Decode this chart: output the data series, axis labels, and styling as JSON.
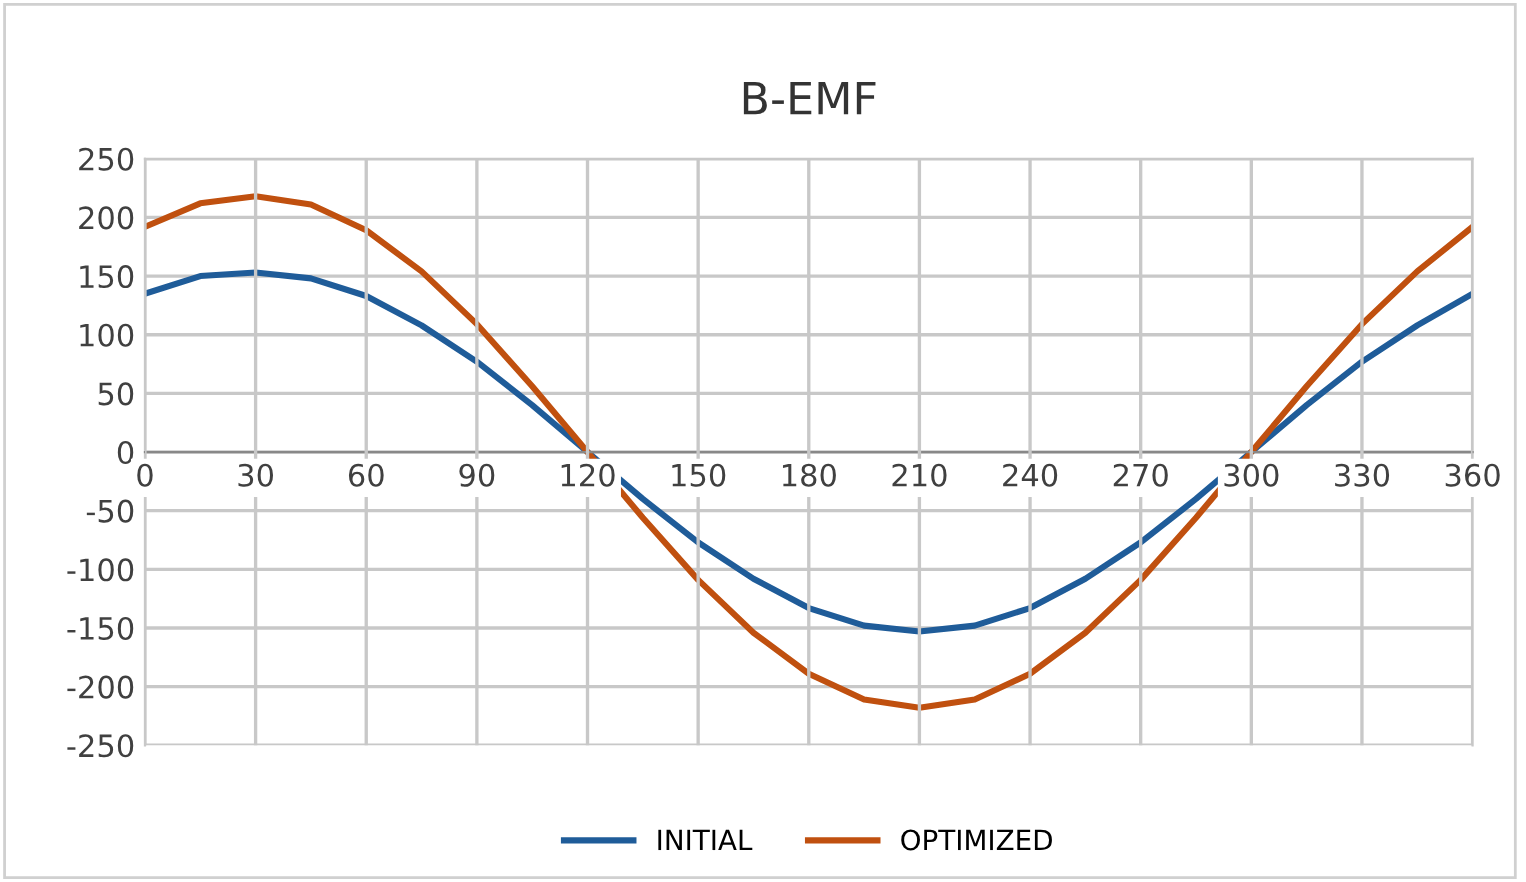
{
  "chart_data": {
    "type": "line",
    "title": "B-EMF",
    "x": [
      0,
      15,
      30,
      45,
      60,
      75,
      90,
      105,
      120,
      135,
      150,
      165,
      180,
      195,
      210,
      225,
      240,
      255,
      270,
      285,
      300,
      315,
      330,
      345,
      360
    ],
    "series": [
      {
        "name": "INITIAL",
        "color": "#1f5c99",
        "values": [
          135,
          150,
          153,
          148,
          133,
          108,
          77,
          40,
          0,
          -40,
          -77,
          -108,
          -133,
          -148,
          -153,
          -148,
          -133,
          -108,
          -77,
          -40,
          0,
          40,
          77,
          108,
          135
        ]
      },
      {
        "name": "OPTIMIZED",
        "color": "#c0500f",
        "values": [
          192,
          212,
          218,
          211,
          189,
          154,
          109,
          56,
          0,
          -56,
          -109,
          -154,
          -189,
          -211,
          -218,
          -211,
          -189,
          -154,
          -109,
          -56,
          0,
          56,
          109,
          154,
          192
        ]
      }
    ],
    "xlim": [
      0,
      360
    ],
    "xticks": [
      0,
      30,
      60,
      90,
      120,
      150,
      180,
      210,
      240,
      270,
      300,
      330,
      360
    ],
    "ylim": [
      -250,
      250
    ],
    "yticks": [
      -250,
      -200,
      -150,
      -100,
      -50,
      0,
      50,
      100,
      150,
      200,
      250
    ],
    "grid": true,
    "legend": "bottom",
    "marker": "none",
    "line_style": "solid"
  }
}
